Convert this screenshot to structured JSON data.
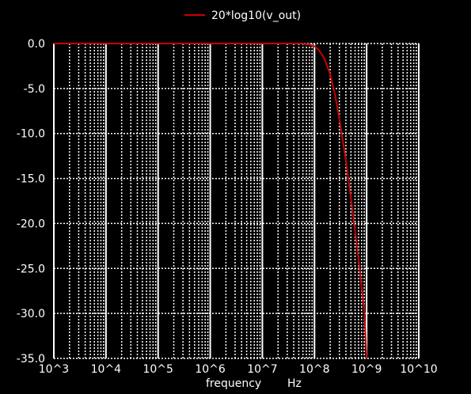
{
  "chart_data": {
    "type": "line",
    "title": "",
    "xlabel": "frequency",
    "xunit": "Hz",
    "ylabel": "",
    "xscale": "log",
    "xlim": [
      1000,
      10000000000
    ],
    "ylim": [
      -35,
      0
    ],
    "grid": true,
    "legend_position": "top-center",
    "background_color": "#000000",
    "grid_color": "#ffffff",
    "x_tick_labels": [
      "10^3",
      "10^4",
      "10^5",
      "10^6",
      "10^7",
      "10^8",
      "10^9",
      "10^10"
    ],
    "y_tick_labels": [
      "0.0",
      "-5.0",
      "-10.0",
      "-15.0",
      "-20.0",
      "-25.0",
      "-30.0",
      "-35.0"
    ],
    "series": [
      {
        "name": "20*log10(v_out)",
        "color": "#cc0000",
        "x": [
          1000,
          10000,
          100000,
          1000000,
          10000000,
          50000000,
          80000000,
          100000000,
          120000000,
          150000000,
          200000000,
          250000000,
          300000000,
          400000000,
          500000000,
          600000000,
          700000000,
          800000000,
          900000000,
          1000000000
        ],
        "y": [
          0,
          0,
          0,
          0,
          0,
          0,
          -0.1,
          -0.3,
          -0.7,
          -1.5,
          -3.4,
          -5.8,
          -8.4,
          -13.0,
          -17.2,
          -20.8,
          -24.0,
          -27.0,
          -29.6,
          -35.0
        ]
      }
    ]
  }
}
